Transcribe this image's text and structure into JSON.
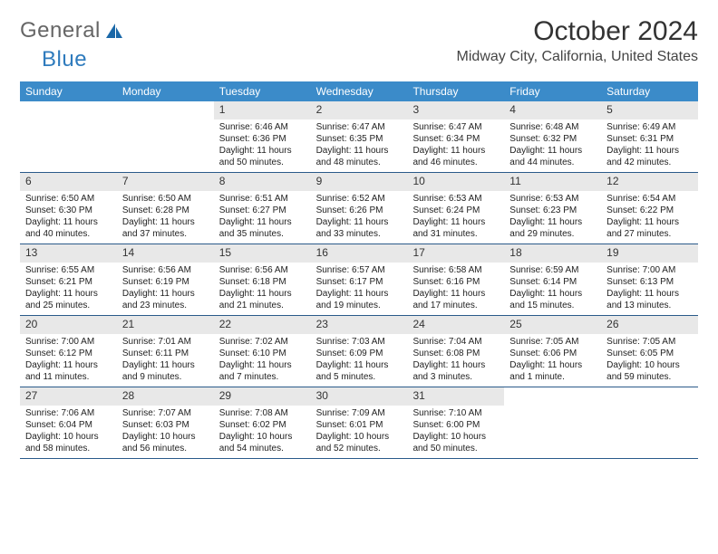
{
  "logo": {
    "part1": "General",
    "part2": "Blue"
  },
  "title": "October 2024",
  "location": "Midway City, California, United States",
  "header_bg": "#3b8bc9",
  "header_text": "#ffffff",
  "daynum_bg": "#e8e8e8",
  "week_border": "#2a5a8a",
  "page_bg": "#ffffff",
  "day_names": [
    "Sunday",
    "Monday",
    "Tuesday",
    "Wednesday",
    "Thursday",
    "Friday",
    "Saturday"
  ],
  "weeks": [
    [
      null,
      null,
      {
        "n": "1",
        "sr": "Sunrise: 6:46 AM",
        "ss": "Sunset: 6:36 PM",
        "dl": "Daylight: 11 hours and 50 minutes."
      },
      {
        "n": "2",
        "sr": "Sunrise: 6:47 AM",
        "ss": "Sunset: 6:35 PM",
        "dl": "Daylight: 11 hours and 48 minutes."
      },
      {
        "n": "3",
        "sr": "Sunrise: 6:47 AM",
        "ss": "Sunset: 6:34 PM",
        "dl": "Daylight: 11 hours and 46 minutes."
      },
      {
        "n": "4",
        "sr": "Sunrise: 6:48 AM",
        "ss": "Sunset: 6:32 PM",
        "dl": "Daylight: 11 hours and 44 minutes."
      },
      {
        "n": "5",
        "sr": "Sunrise: 6:49 AM",
        "ss": "Sunset: 6:31 PM",
        "dl": "Daylight: 11 hours and 42 minutes."
      }
    ],
    [
      {
        "n": "6",
        "sr": "Sunrise: 6:50 AM",
        "ss": "Sunset: 6:30 PM",
        "dl": "Daylight: 11 hours and 40 minutes."
      },
      {
        "n": "7",
        "sr": "Sunrise: 6:50 AM",
        "ss": "Sunset: 6:28 PM",
        "dl": "Daylight: 11 hours and 37 minutes."
      },
      {
        "n": "8",
        "sr": "Sunrise: 6:51 AM",
        "ss": "Sunset: 6:27 PM",
        "dl": "Daylight: 11 hours and 35 minutes."
      },
      {
        "n": "9",
        "sr": "Sunrise: 6:52 AM",
        "ss": "Sunset: 6:26 PM",
        "dl": "Daylight: 11 hours and 33 minutes."
      },
      {
        "n": "10",
        "sr": "Sunrise: 6:53 AM",
        "ss": "Sunset: 6:24 PM",
        "dl": "Daylight: 11 hours and 31 minutes."
      },
      {
        "n": "11",
        "sr": "Sunrise: 6:53 AM",
        "ss": "Sunset: 6:23 PM",
        "dl": "Daylight: 11 hours and 29 minutes."
      },
      {
        "n": "12",
        "sr": "Sunrise: 6:54 AM",
        "ss": "Sunset: 6:22 PM",
        "dl": "Daylight: 11 hours and 27 minutes."
      }
    ],
    [
      {
        "n": "13",
        "sr": "Sunrise: 6:55 AM",
        "ss": "Sunset: 6:21 PM",
        "dl": "Daylight: 11 hours and 25 minutes."
      },
      {
        "n": "14",
        "sr": "Sunrise: 6:56 AM",
        "ss": "Sunset: 6:19 PM",
        "dl": "Daylight: 11 hours and 23 minutes."
      },
      {
        "n": "15",
        "sr": "Sunrise: 6:56 AM",
        "ss": "Sunset: 6:18 PM",
        "dl": "Daylight: 11 hours and 21 minutes."
      },
      {
        "n": "16",
        "sr": "Sunrise: 6:57 AM",
        "ss": "Sunset: 6:17 PM",
        "dl": "Daylight: 11 hours and 19 minutes."
      },
      {
        "n": "17",
        "sr": "Sunrise: 6:58 AM",
        "ss": "Sunset: 6:16 PM",
        "dl": "Daylight: 11 hours and 17 minutes."
      },
      {
        "n": "18",
        "sr": "Sunrise: 6:59 AM",
        "ss": "Sunset: 6:14 PM",
        "dl": "Daylight: 11 hours and 15 minutes."
      },
      {
        "n": "19",
        "sr": "Sunrise: 7:00 AM",
        "ss": "Sunset: 6:13 PM",
        "dl": "Daylight: 11 hours and 13 minutes."
      }
    ],
    [
      {
        "n": "20",
        "sr": "Sunrise: 7:00 AM",
        "ss": "Sunset: 6:12 PM",
        "dl": "Daylight: 11 hours and 11 minutes."
      },
      {
        "n": "21",
        "sr": "Sunrise: 7:01 AM",
        "ss": "Sunset: 6:11 PM",
        "dl": "Daylight: 11 hours and 9 minutes."
      },
      {
        "n": "22",
        "sr": "Sunrise: 7:02 AM",
        "ss": "Sunset: 6:10 PM",
        "dl": "Daylight: 11 hours and 7 minutes."
      },
      {
        "n": "23",
        "sr": "Sunrise: 7:03 AM",
        "ss": "Sunset: 6:09 PM",
        "dl": "Daylight: 11 hours and 5 minutes."
      },
      {
        "n": "24",
        "sr": "Sunrise: 7:04 AM",
        "ss": "Sunset: 6:08 PM",
        "dl": "Daylight: 11 hours and 3 minutes."
      },
      {
        "n": "25",
        "sr": "Sunrise: 7:05 AM",
        "ss": "Sunset: 6:06 PM",
        "dl": "Daylight: 11 hours and 1 minute."
      },
      {
        "n": "26",
        "sr": "Sunrise: 7:05 AM",
        "ss": "Sunset: 6:05 PM",
        "dl": "Daylight: 10 hours and 59 minutes."
      }
    ],
    [
      {
        "n": "27",
        "sr": "Sunrise: 7:06 AM",
        "ss": "Sunset: 6:04 PM",
        "dl": "Daylight: 10 hours and 58 minutes."
      },
      {
        "n": "28",
        "sr": "Sunrise: 7:07 AM",
        "ss": "Sunset: 6:03 PM",
        "dl": "Daylight: 10 hours and 56 minutes."
      },
      {
        "n": "29",
        "sr": "Sunrise: 7:08 AM",
        "ss": "Sunset: 6:02 PM",
        "dl": "Daylight: 10 hours and 54 minutes."
      },
      {
        "n": "30",
        "sr": "Sunrise: 7:09 AM",
        "ss": "Sunset: 6:01 PM",
        "dl": "Daylight: 10 hours and 52 minutes."
      },
      {
        "n": "31",
        "sr": "Sunrise: 7:10 AM",
        "ss": "Sunset: 6:00 PM",
        "dl": "Daylight: 10 hours and 50 minutes."
      },
      null,
      null
    ]
  ]
}
